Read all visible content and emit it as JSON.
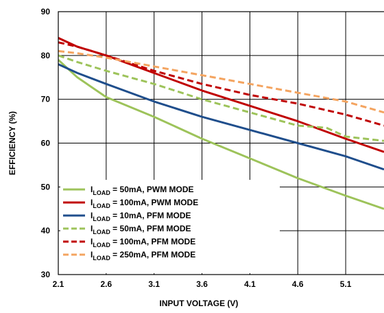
{
  "chart_data": {
    "type": "line",
    "xlabel": "INPUT VOLTAGE (V)",
    "ylabel": "EFFICIENCY (%)",
    "xlim": [
      2.1,
      5.5
    ],
    "ylim": [
      30,
      90
    ],
    "x_ticks": [
      "2.1",
      "2.6",
      "3.1",
      "3.6",
      "4.1",
      "4.6",
      "5.1"
    ],
    "y_ticks": [
      "30",
      "40",
      "50",
      "60",
      "70",
      "80",
      "90"
    ],
    "grid": true,
    "legend_position": "bottom-left",
    "series": [
      {
        "name": "I_LOAD = 50mA, PWM MODE",
        "legend": {
          "prefix": "I",
          "sub": "LOAD",
          "suffix": " = 50mA, PWM MODE"
        },
        "color": "#9dc35a",
        "dash": "solid",
        "x": [
          2.1,
          2.3,
          2.6,
          3.1,
          3.6,
          4.1,
          4.6,
          5.1,
          5.5
        ],
        "y": [
          79,
          75,
          70.5,
          66,
          61,
          56.5,
          52,
          48,
          45
        ]
      },
      {
        "name": "I_LOAD = 100mA, PWM MODE",
        "legend": {
          "prefix": "I",
          "sub": "LOAD",
          "suffix": " = 100mA, PWM MODE"
        },
        "color": "#c00000",
        "dash": "solid",
        "x": [
          2.1,
          2.3,
          2.6,
          3.1,
          3.6,
          4.1,
          4.6,
          5.1,
          5.5
        ],
        "y": [
          84,
          82,
          80,
          76,
          72,
          68.5,
          65,
          61,
          58
        ]
      },
      {
        "name": "I_LOAD = 10mA, PFM MODE",
        "legend": {
          "prefix": "I",
          "sub": "LOAD",
          "suffix": " = 10mA, PFM MODE"
        },
        "color": "#1f4e8c",
        "dash": "solid",
        "x": [
          2.1,
          2.3,
          2.6,
          3.1,
          3.6,
          4.1,
          4.6,
          5.1,
          5.5
        ],
        "y": [
          78,
          76,
          73.5,
          69.5,
          66,
          63,
          60,
          57,
          54
        ]
      },
      {
        "name": "I_LOAD = 50mA, PFM MODE",
        "legend": {
          "prefix": "I",
          "sub": "LOAD",
          "suffix": " = 50mA, PFM MODE"
        },
        "color": "#9dc35a",
        "dash": "dashed",
        "x": [
          2.1,
          2.3,
          2.6,
          3.1,
          3.6,
          4.1,
          4.6,
          4.9,
          5.1,
          5.5
        ],
        "y": [
          80,
          78.5,
          76.5,
          73.5,
          70,
          67,
          64,
          63.5,
          61.5,
          60.5
        ]
      },
      {
        "name": "I_LOAD = 100mA, PFM MODE",
        "legend": {
          "prefix": "I",
          "sub": "LOAD",
          "suffix": " = 100mA, PFM MODE"
        },
        "color": "#c00000",
        "dash": "dashed",
        "x": [
          2.1,
          2.3,
          2.6,
          3.1,
          3.6,
          4.1,
          4.6,
          5.1,
          5.5
        ],
        "y": [
          83,
          82,
          80,
          76.5,
          73.5,
          71,
          69,
          66.5,
          64
        ]
      },
      {
        "name": "I_LOAD = 250mA, PFM MODE",
        "legend": {
          "prefix": "I",
          "sub": "LOAD",
          "suffix": " = 250mA, PFM MODE"
        },
        "color": "#f4a460",
        "dash": "dashed",
        "x": [
          2.1,
          2.3,
          2.6,
          3.1,
          3.6,
          4.1,
          4.6,
          5.1,
          5.5
        ],
        "y": [
          81,
          80.5,
          79.5,
          77.5,
          75.5,
          73.5,
          71.5,
          69.5,
          67
        ]
      }
    ]
  }
}
